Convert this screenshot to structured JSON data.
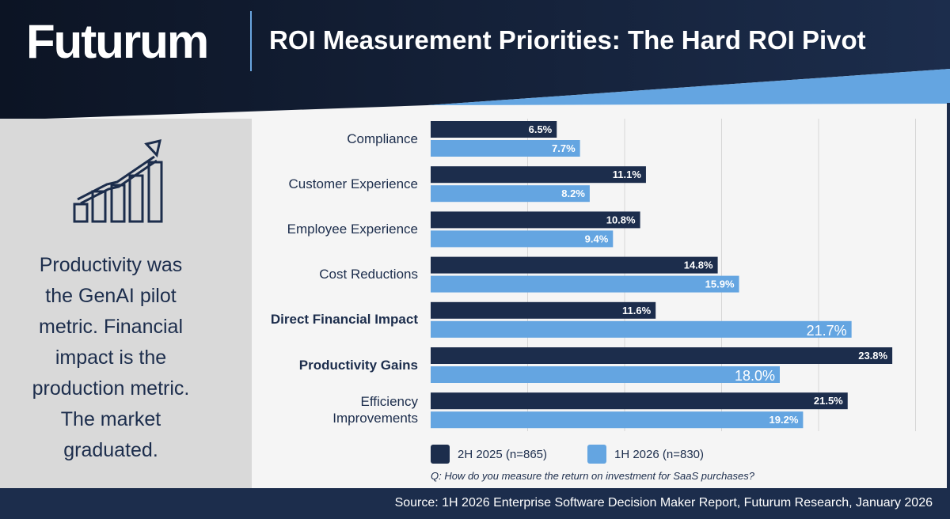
{
  "header": {
    "logo": "Futurum",
    "title": "ROI Measurement Priorities: The Hard ROI Pivot"
  },
  "takeaway": "Productivity was\nthe GenAI pilot\nmetric. Financial\nimpact is the\nproduction metric.\nThe market\ngraduated.",
  "question": "Q: How do you measure the return on investment for SaaS purchases?",
  "footer": "Source: 1H 2026 Enterprise Software Decision Maker Report, Futurum Research, January 2026",
  "colors": {
    "series1": "#1c2d4c",
    "series2": "#64a5e1",
    "navy": "#0f1a2e"
  },
  "chart_data": {
    "type": "bar",
    "orientation": "horizontal",
    "categories": [
      "Compliance",
      "Customer Experience",
      "Employee Experience",
      "Cost Reductions",
      "Direct Financial Impact",
      "Productivity Gains",
      "Efficiency\nImprovements"
    ],
    "bold_categories": [
      "Direct Financial Impact",
      "Productivity Gains"
    ],
    "series": [
      {
        "name": "2H 2025 (n=865)",
        "values": [
          6.5,
          11.1,
          10.8,
          14.8,
          11.6,
          23.8,
          21.5
        ],
        "labels": [
          "6.5%",
          "11.1%",
          "10.8%",
          "14.8%",
          "11.6%",
          "23.8%",
          "21.5%"
        ]
      },
      {
        "name": "1H 2026 (n=830)",
        "values": [
          7.7,
          8.2,
          9.4,
          15.9,
          21.7,
          18.0,
          19.2
        ],
        "labels": [
          "7.7%",
          "8.2%",
          "9.4%",
          "15.9%",
          "21.7%",
          "18.0%",
          "19.2%"
        ]
      }
    ],
    "xlim": [
      0,
      25
    ],
    "gridlines": [
      5,
      10,
      15,
      20,
      25
    ],
    "grid": true,
    "legend": "bottom"
  }
}
